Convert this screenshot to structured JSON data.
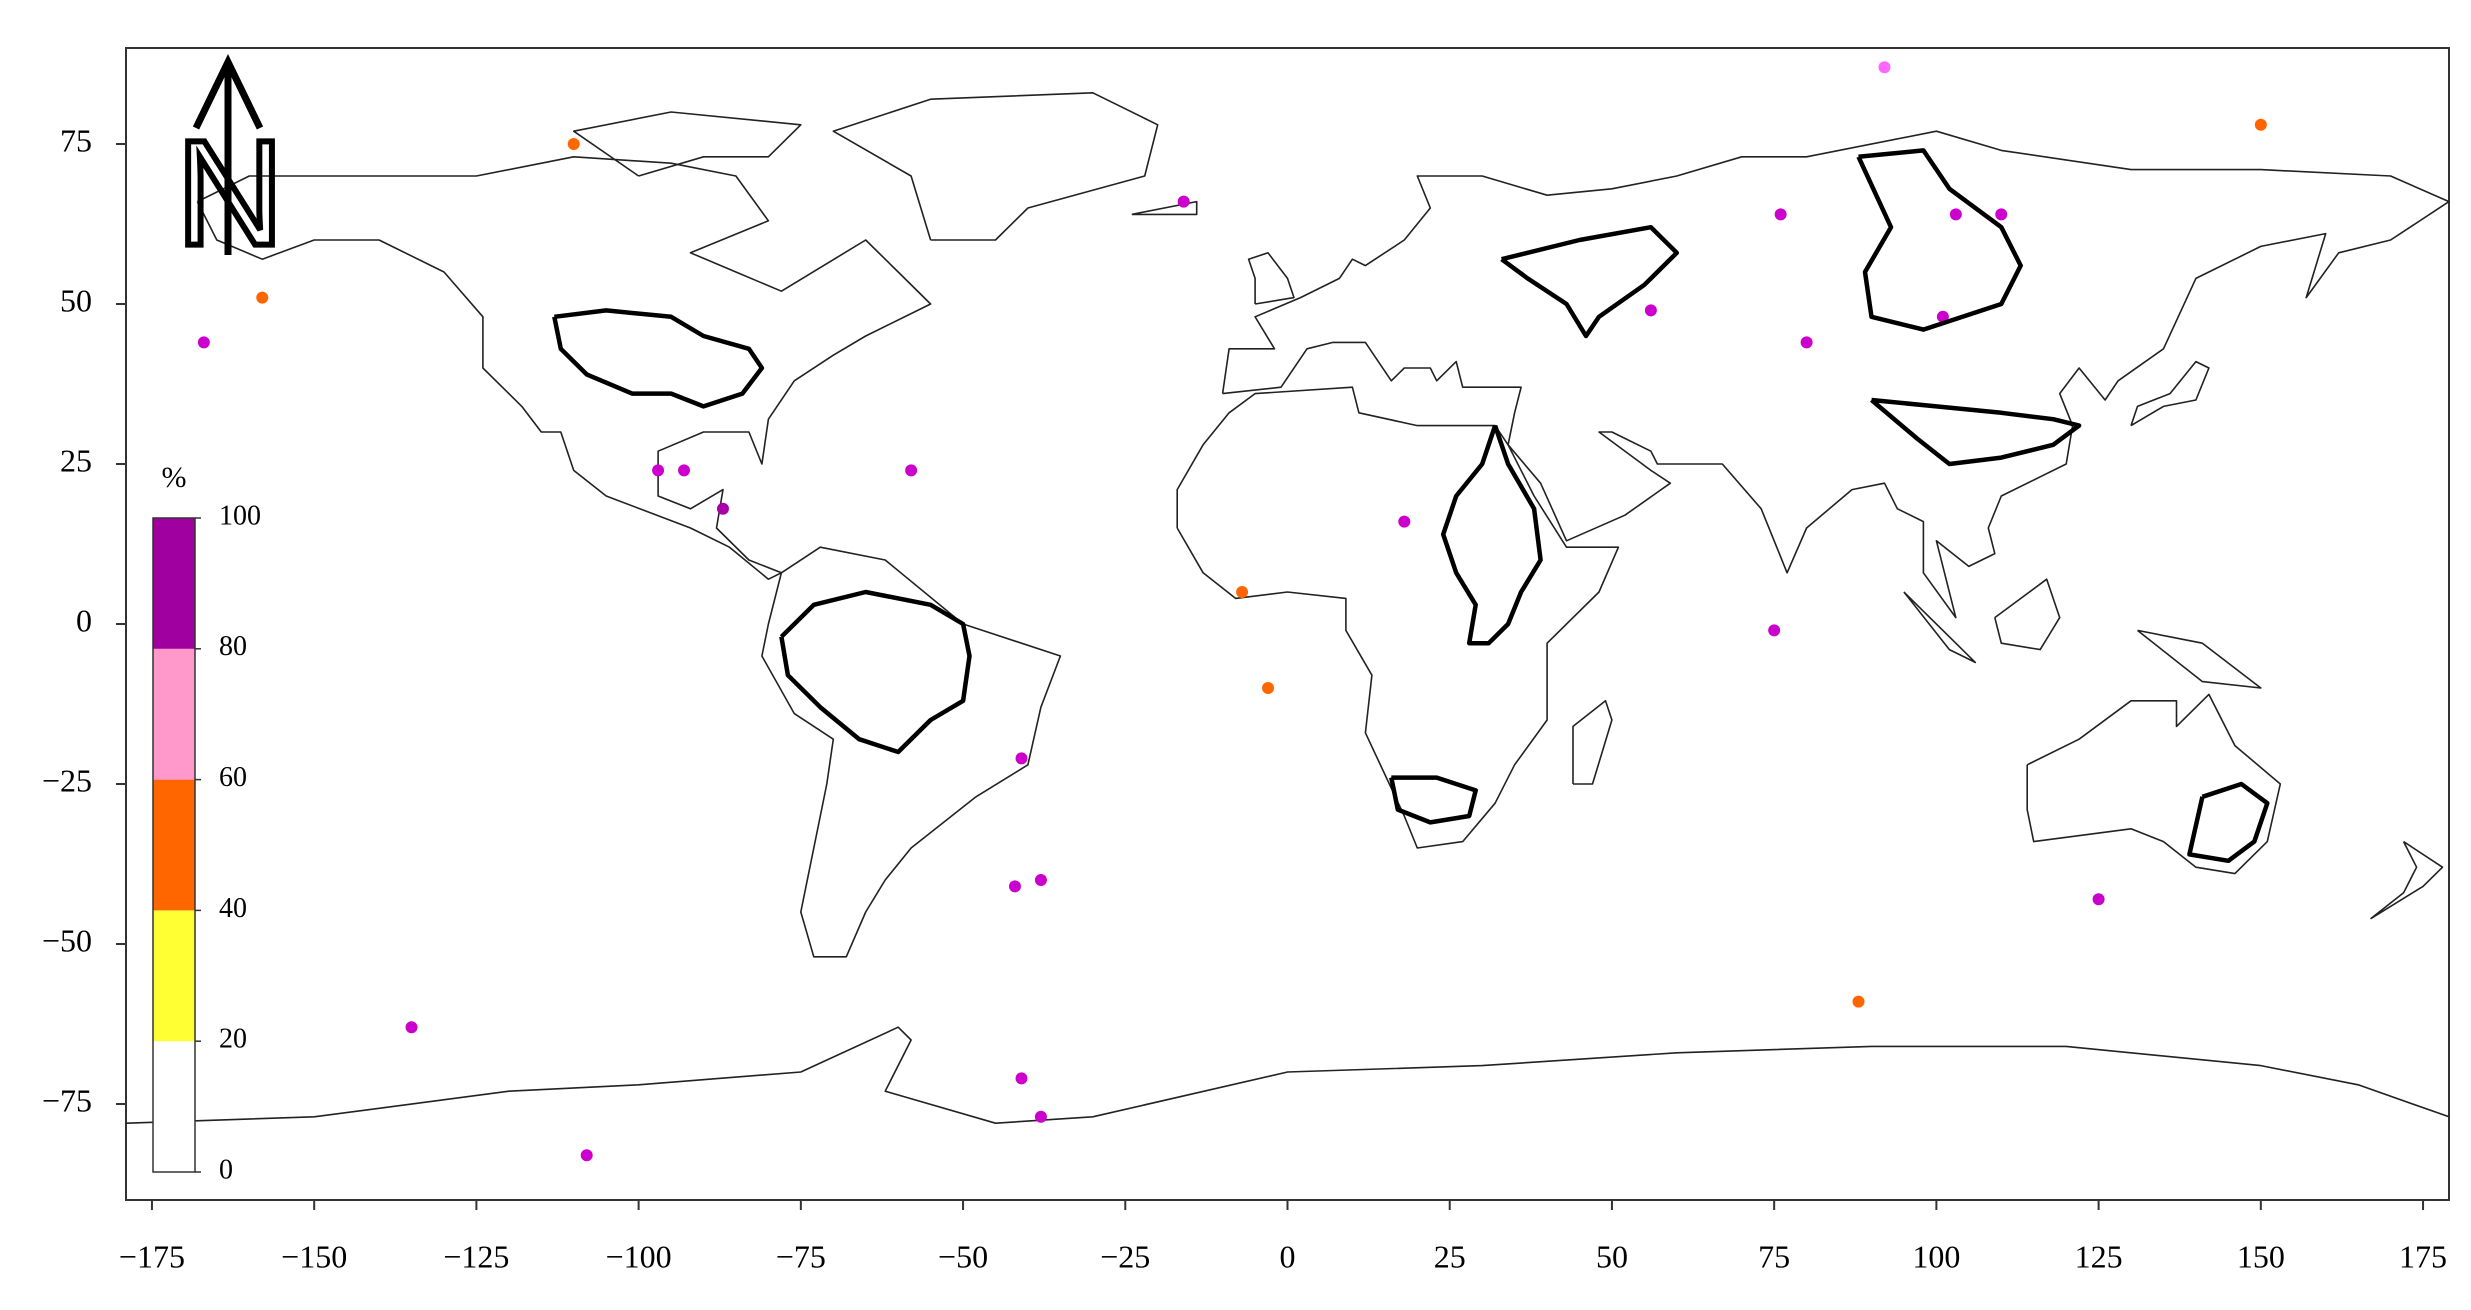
{
  "chart_data": {
    "type": "map",
    "north_label": "N",
    "xlim": [
      -179,
      179
    ],
    "ylim": [
      -90,
      90
    ],
    "xticks": [
      {
        "value": -175,
        "label": "−175"
      },
      {
        "value": -150,
        "label": "−150"
      },
      {
        "value": -125,
        "label": "−125"
      },
      {
        "value": -100,
        "label": "−100"
      },
      {
        "value": -75,
        "label": "−75"
      },
      {
        "value": -50,
        "label": "−50"
      },
      {
        "value": -25,
        "label": "−25"
      },
      0,
      25,
      50,
      75,
      100,
      125,
      150,
      175
    ],
    "yticks": [
      {
        "value": -75,
        "label": "−75"
      },
      {
        "value": -50,
        "label": "−50"
      },
      {
        "value": -25,
        "label": "−25"
      },
      0,
      25,
      50,
      75
    ],
    "colorbar": {
      "title": "%",
      "ticks": [
        0,
        20,
        40,
        60,
        80,
        100
      ],
      "colors": [
        "#ffffff",
        "#ffff33",
        "#ff6600",
        "#ff99cc",
        "#a000a0"
      ]
    }
  }
}
